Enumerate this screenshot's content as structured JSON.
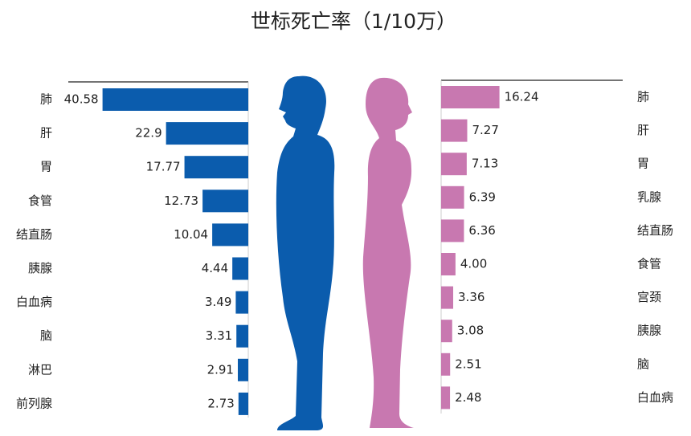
{
  "title": "世标死亡率（1/10万）",
  "chart_data": [
    {
      "type": "bar",
      "orientation": "horizontal",
      "direction": "left",
      "color": "#0b5cad",
      "categories": [
        "肺",
        "肝",
        "胃",
        "食管",
        "结直肠",
        "胰腺",
        "白血病",
        "脑",
        "淋巴",
        "前列腺"
      ],
      "values": [
        40.58,
        22.9,
        17.77,
        12.73,
        10.04,
        4.44,
        3.49,
        3.31,
        2.91,
        2.73
      ]
    },
    {
      "type": "bar",
      "orientation": "horizontal",
      "direction": "right",
      "color": "#c878b0",
      "categories": [
        "肺",
        "肝",
        "胃",
        "乳腺",
        "结直肠",
        "食管",
        "宫颈",
        "胰腺",
        "脑",
        "白血病"
      ],
      "values": [
        16.24,
        7.27,
        7.13,
        6.39,
        6.36,
        4.0,
        3.36,
        3.08,
        2.51,
        2.48
      ],
      "value_labels": [
        "16.24",
        "7.27",
        "7.13",
        "6.39",
        "6.36",
        "4.00",
        "3.36",
        "3.08",
        "2.51",
        "2.48"
      ]
    }
  ]
}
